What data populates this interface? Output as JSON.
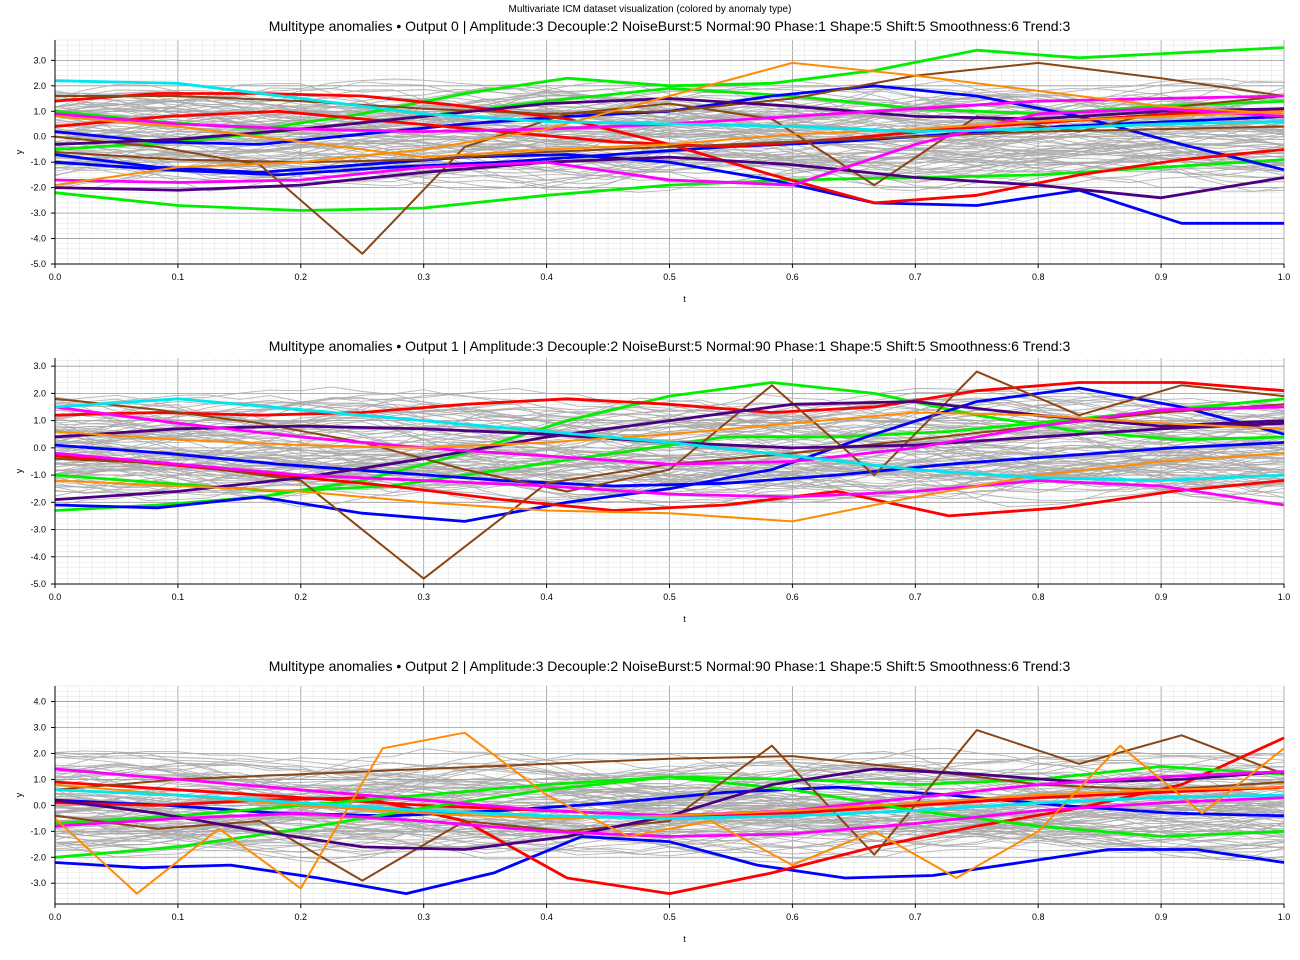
{
  "figure_title": "Multivariate ICM dataset visualization (colored by anomaly type)",
  "colors": {
    "Normal": "#a9a9a9",
    "Amplitude": "#00e5ee",
    "Decouple": "#ff00ff",
    "NoiseBurst": "#ff8c00",
    "Phase": "#4b0082",
    "Shape": "#ff0000",
    "Shift": "#0000ff",
    "Smoothness": "#00ee00",
    "Trend": "#8b4513"
  },
  "chart_data": [
    {
      "type": "line",
      "title": "Multitype anomalies • Output 0  |  Amplitude:3  Decouple:2  NoiseBurst:5  Normal:90  Phase:1  Shape:5  Shift:5  Smoothness:6  Trend:3",
      "xlabel": "t",
      "ylabel": "y",
      "xlim": [
        0,
        1
      ],
      "ylim": [
        -5.0,
        3.8
      ],
      "xticks": [
        "0.0",
        "0.1",
        "0.2",
        "0.3",
        "0.4",
        "0.5",
        "0.6",
        "0.7",
        "0.8",
        "0.9",
        "1.0"
      ],
      "yticks": [
        "-5.0",
        "-4.0",
        "-3.0",
        "-2.0",
        "-1.0",
        "0.0",
        "1.0",
        "2.0",
        "3.0"
      ],
      "ytick_values": [
        -5,
        -4,
        -3,
        -2,
        -1,
        0,
        1,
        2,
        3
      ],
      "grid": true,
      "series": [
        {
          "type": "Smoothness",
          "values": [
            -2.2,
            -2.7,
            -2.9,
            -2.8,
            -2.3,
            -1.9,
            -1.7,
            -1.6,
            -1.5,
            -1.2,
            -0.9
          ]
        },
        {
          "type": "Smoothness",
          "values": [
            1.0,
            0.6,
            0.3,
            0.9,
            1.7,
            2.3,
            2.0,
            2.1,
            2.6,
            3.4,
            3.1,
            3.3,
            3.5
          ]
        },
        {
          "type": "Smoothness",
          "values": [
            -0.5,
            -0.2,
            0.3,
            0.8,
            1.4,
            1.9,
            1.6,
            1.1,
            0.9,
            1.2,
            1.4
          ]
        },
        {
          "type": "Shift",
          "values": [
            -0.7,
            -1.2,
            -1.4,
            -1.1,
            -0.8,
            -0.7,
            -1.0,
            -1.7,
            -2.6,
            -2.7,
            -2.1,
            -3.4,
            -3.4
          ]
        },
        {
          "type": "Shift",
          "values": [
            0.2,
            -0.2,
            -0.3,
            0.1,
            0.5,
            0.8,
            1.0,
            1.6,
            2.0,
            1.6,
            0.8,
            -0.3,
            -1.3
          ]
        },
        {
          "type": "Shift",
          "values": [
            -1.0,
            -1.3,
            -1.5,
            -1.2,
            -1.0,
            -0.7,
            -0.4,
            -0.2,
            0.1,
            0.4,
            0.6,
            0.8
          ]
        },
        {
          "type": "Shape",
          "values": [
            1.4,
            1.7,
            1.7,
            1.6,
            1.2,
            0.7,
            -0.3,
            -1.5,
            -2.6,
            -2.3,
            -1.5,
            -0.9,
            -0.5
          ]
        },
        {
          "type": "Shape",
          "values": [
            0.4,
            0.8,
            1.0,
            0.6,
            0.2,
            -0.2,
            -0.4,
            -0.1,
            0.3,
            0.6,
            0.9,
            1.1
          ]
        },
        {
          "type": "Trend",
          "values": [
            1.6,
            1.6,
            1.4,
            1.1,
            0.9,
            1.0,
            1.5,
            2.4,
            2.9,
            2.3,
            1.6
          ]
        },
        {
          "type": "Trend",
          "values": [
            -0.6,
            -0.9,
            -1.0,
            -0.9,
            -0.6,
            -0.4,
            -0.2,
            0.0,
            0.2,
            0.3,
            0.4
          ]
        },
        {
          "type": "Trend",
          "values": [
            0.0,
            -0.4,
            -1.1,
            -4.6,
            -0.4,
            0.9,
            1.3,
            0.7,
            -1.9,
            0.8,
            0.2,
            1.2,
            1.6
          ]
        },
        {
          "type": "Phase",
          "values": [
            -2.0,
            -2.1,
            -1.9,
            -1.4,
            -1.0,
            -0.8,
            -1.1,
            -1.6,
            -1.9,
            -2.4,
            -1.6
          ]
        },
        {
          "type": "Phase",
          "values": [
            -0.3,
            -0.1,
            0.3,
            0.8,
            1.3,
            1.5,
            1.2,
            0.8,
            0.7,
            1.0,
            1.1
          ]
        },
        {
          "type": "Decouple",
          "values": [
            0.9,
            0.5,
            0.3,
            0.2,
            0.3,
            0.5,
            0.8,
            1.1,
            1.4,
            1.5,
            1.6
          ]
        },
        {
          "type": "Decouple",
          "values": [
            -1.7,
            -1.8,
            -1.7,
            -1.2,
            -1.0,
            -1.7,
            -1.9,
            -0.3,
            0.9,
            1.1,
            0.8
          ]
        },
        {
          "type": "NoiseBurst",
          "values": [
            -1.9,
            -1.2,
            -1.0,
            -0.5,
            0.3,
            1.6,
            2.9,
            2.4,
            1.8,
            1.2,
            0.9
          ]
        },
        {
          "type": "NoiseBurst",
          "values": [
            0.8,
            0.4,
            -0.2,
            -0.8,
            -0.5,
            -0.3,
            0.1,
            0.3,
            0.6,
            0.8,
            1.0
          ]
        },
        {
          "type": "Amplitude",
          "values": [
            2.2,
            2.1,
            1.5,
            0.9,
            0.6,
            0.5,
            0.4,
            0.2,
            0.3,
            0.5,
            0.6
          ]
        }
      ]
    },
    {
      "type": "line",
      "title": "Multitype anomalies • Output 1  |  Amplitude:3  Decouple:2  NoiseBurst:5  Normal:90  Phase:1  Shape:5  Shift:5  Smoothness:6  Trend:3",
      "xlabel": "t",
      "ylabel": "y",
      "xlim": [
        0,
        1
      ],
      "ylim": [
        -5.0,
        3.3
      ],
      "xticks": [
        "0.0",
        "0.1",
        "0.2",
        "0.3",
        "0.4",
        "0.5",
        "0.6",
        "0.7",
        "0.8",
        "0.9",
        "1.0"
      ],
      "yticks": [
        "-5.0",
        "-4.0",
        "-3.0",
        "-2.0",
        "-1.0",
        "0.0",
        "1.0",
        "2.0",
        "3.0"
      ],
      "ytick_values": [
        -5,
        -4,
        -3,
        -2,
        -1,
        0,
        1,
        2,
        3
      ],
      "grid": true,
      "series": [
        {
          "type": "Smoothness",
          "values": [
            -2.3,
            -2.1,
            -1.8,
            -1.2,
            -0.2,
            1.0,
            1.9,
            2.4,
            2.0,
            1.2,
            0.6,
            0.3,
            0.4
          ]
        },
        {
          "type": "Smoothness",
          "values": [
            -1.0,
            -1.3,
            -1.6,
            -1.4,
            -0.8,
            -0.2,
            0.4,
            0.4,
            0.6,
            1.0,
            1.4,
            1.8
          ]
        },
        {
          "type": "Shift",
          "values": [
            -2.1,
            -2.2,
            -1.8,
            -2.4,
            -2.7,
            -2.0,
            -1.5,
            -0.8,
            0.5,
            1.7,
            2.2,
            1.5,
            0.5
          ]
        },
        {
          "type": "Shift",
          "values": [
            0.1,
            -0.2,
            -0.6,
            -0.9,
            -1.2,
            -1.4,
            -1.3,
            -1.0,
            -0.6,
            -0.3,
            0.0,
            0.2
          ]
        },
        {
          "type": "Shape",
          "values": [
            1.2,
            1.3,
            1.2,
            1.3,
            1.6,
            1.8,
            1.6,
            1.3,
            1.5,
            2.1,
            2.4,
            2.4,
            2.1
          ]
        },
        {
          "type": "Shape",
          "values": [
            -0.3,
            -0.6,
            -1.0,
            -1.4,
            -1.9,
            -2.3,
            -2.1,
            -1.6,
            -2.5,
            -2.2,
            -1.6,
            -1.2
          ]
        },
        {
          "type": "Trend",
          "values": [
            1.8,
            1.4,
            0.9,
            0.2,
            -0.8,
            -1.6,
            -0.8,
            2.3,
            -1.0,
            2.8,
            1.2,
            2.3,
            1.9
          ]
        },
        {
          "type": "Trend",
          "values": [
            -0.4,
            -0.6,
            -1.2,
            -4.8,
            -1.3,
            -0.6,
            -0.2,
            0.3,
            0.8,
            1.3,
            1.6
          ]
        },
        {
          "type": "Phase",
          "values": [
            -1.9,
            -1.6,
            -1.1,
            -0.4,
            0.4,
            1.0,
            1.6,
            1.7,
            1.2,
            0.8,
            1.0
          ]
        },
        {
          "type": "Phase",
          "values": [
            0.4,
            0.7,
            0.8,
            0.7,
            0.5,
            0.2,
            0.0,
            0.1,
            0.4,
            0.7,
            0.9
          ]
        },
        {
          "type": "Decouple",
          "values": [
            1.5,
            0.9,
            0.4,
            0.0,
            -0.3,
            -0.6,
            -0.5,
            0.0,
            0.8,
            1.4,
            1.5
          ]
        },
        {
          "type": "Decouple",
          "values": [
            -0.2,
            -0.6,
            -1.0,
            -1.2,
            -1.4,
            -1.7,
            -1.8,
            -1.6,
            -1.2,
            -1.4,
            -2.1
          ]
        },
        {
          "type": "NoiseBurst",
          "values": [
            -1.2,
            -1.4,
            -1.6,
            -2.0,
            -2.3,
            -2.4,
            -2.7,
            -1.8,
            -1.0,
            -0.5,
            -0.2
          ]
        },
        {
          "type": "NoiseBurst",
          "values": [
            0.6,
            0.3,
            0.1,
            0.0,
            0.2,
            0.5,
            0.9,
            1.3,
            1.2,
            0.9,
            0.7
          ]
        },
        {
          "type": "Amplitude",
          "values": [
            1.5,
            1.8,
            1.4,
            1.0,
            0.6,
            0.2,
            -0.3,
            -0.8,
            -1.1,
            -1.2,
            -1.0
          ]
        }
      ]
    },
    {
      "type": "line",
      "title": "Multitype anomalies • Output 2  |  Amplitude:3  Decouple:2  NoiseBurst:5  Normal:90  Phase:1  Shape:5  Shift:5  Smoothness:6  Trend:3",
      "xlabel": "t",
      "ylabel": "y",
      "xlim": [
        0,
        1
      ],
      "ylim": [
        -3.8,
        4.6
      ],
      "xticks": [
        "0.0",
        "0.1",
        "0.2",
        "0.3",
        "0.4",
        "0.5",
        "0.6",
        "0.7",
        "0.8",
        "0.9",
        "1.0"
      ],
      "yticks": [
        "-3.0",
        "-2.0",
        "-1.0",
        "0.0",
        "1.0",
        "2.0",
        "3.0",
        "4.0"
      ],
      "ytick_values": [
        -3,
        -2,
        -1,
        0,
        1,
        2,
        3,
        4
      ],
      "grid": true,
      "series": [
        {
          "type": "Shift",
          "values": [
            -2.2,
            -2.4,
            -2.3,
            -2.8,
            -3.4,
            -2.6,
            -1.2,
            -1.4,
            -2.3,
            -2.8,
            -2.7,
            -2.2,
            -1.7,
            -1.7,
            -2.2
          ]
        },
        {
          "type": "Shift",
          "values": [
            0.2,
            0.0,
            -0.3,
            -0.4,
            -0.2,
            0.1,
            0.5,
            0.7,
            0.4,
            0.0,
            -0.3,
            -0.4
          ]
        },
        {
          "type": "Shape",
          "values": [
            0.1,
            0.0,
            0.2,
            0.3,
            -0.6,
            -2.8,
            -3.4,
            -2.6,
            -1.6,
            -0.8,
            -0.1,
            0.8,
            2.6
          ]
        },
        {
          "type": "Shape",
          "values": [
            0.9,
            0.6,
            0.3,
            0.0,
            -0.2,
            -0.4,
            -0.3,
            0.0,
            0.3,
            0.5,
            0.7
          ]
        },
        {
          "type": "Smoothness",
          "values": [
            -2.0,
            -1.6,
            -0.9,
            -0.1,
            0.6,
            1.1,
            1.0,
            0.8,
            1.0,
            1.5,
            1.2
          ]
        },
        {
          "type": "Smoothness",
          "values": [
            -0.7,
            -0.4,
            0.0,
            0.4,
            0.8,
            1.1,
            0.6,
            -0.2,
            -0.8,
            -1.2,
            -1.0
          ]
        },
        {
          "type": "Trend",
          "values": [
            0.6,
            1.0,
            1.2,
            1.4,
            1.6,
            1.8,
            1.9,
            1.4,
            0.8,
            0.6,
            0.9
          ]
        },
        {
          "type": "Trend",
          "values": [
            -0.4,
            -0.9,
            -0.6,
            -2.9,
            -0.6,
            -1.0,
            -0.6,
            2.3,
            -1.9,
            2.9,
            1.6,
            2.7,
            1.2
          ]
        },
        {
          "type": "Phase",
          "values": [
            0.2,
            -0.3,
            -1.0,
            -1.6,
            -1.7,
            -1.2,
            -0.4,
            0.8,
            1.4,
            1.2,
            0.9,
            1.0,
            1.3
          ]
        },
        {
          "type": "Decouple",
          "values": [
            1.4,
            1.0,
            0.6,
            0.2,
            -0.2,
            -0.4,
            -0.2,
            0.3,
            0.8,
            1.1,
            1.3
          ]
        },
        {
          "type": "Decouple",
          "values": [
            -0.8,
            -0.5,
            -0.3,
            -0.6,
            -1.0,
            -1.2,
            -1.1,
            -0.7,
            -0.2,
            0.1,
            0.3
          ]
        },
        {
          "type": "NoiseBurst",
          "values": [
            -0.5,
            -3.4,
            -0.9,
            -3.2,
            2.2,
            2.8,
            0.4,
            -1.2,
            -0.6,
            -2.3,
            -1.0,
            -2.8,
            -1.0,
            2.3,
            -0.3,
            2.2
          ]
        },
        {
          "type": "NoiseBurst",
          "values": [
            0.8,
            0.4,
            0.0,
            -0.3,
            -0.5,
            -0.4,
            -0.2,
            0.1,
            0.4,
            0.6,
            0.7
          ]
        },
        {
          "type": "Amplitude",
          "values": [
            0.6,
            0.4,
            0.1,
            -0.2,
            -0.4,
            -0.5,
            -0.4,
            -0.2,
            0.1,
            0.3,
            0.4
          ]
        }
      ]
    }
  ]
}
